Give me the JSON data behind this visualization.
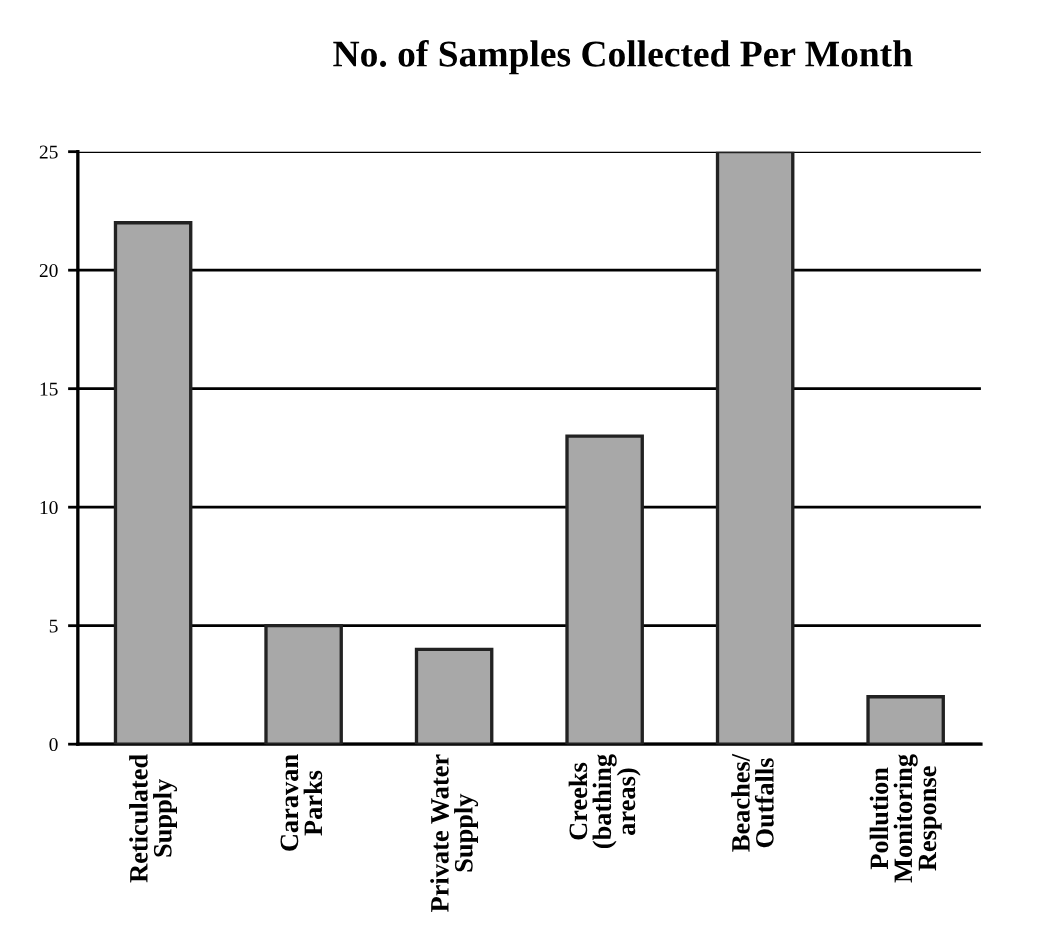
{
  "chart_data": {
    "type": "bar",
    "title": "No. of Samples Collected Per Month",
    "categories": [
      "Reticulated\nSupply",
      "Caravan\nParks",
      "Private Water\nSupply",
      "Creeks\n(bathing\nareas)",
      "Beaches/\nOutfalls",
      "Pollution\nMonitoring\nResponse"
    ],
    "values": [
      22,
      5,
      4,
      13,
      25,
      2
    ],
    "color": "#a8a8a8",
    "ylim": [
      0,
      25
    ],
    "yticks": [
      0,
      5,
      10,
      15,
      20,
      25
    ],
    "grid": "y"
  }
}
